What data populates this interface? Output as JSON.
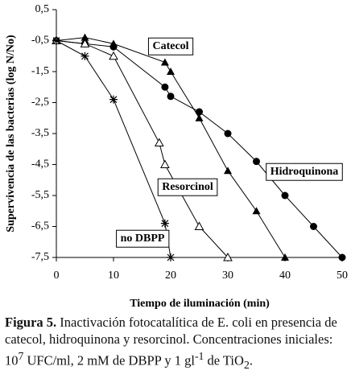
{
  "chart_data": {
    "type": "line",
    "xlabel": "Tiempo de iluminación (min)",
    "ylabel": "Supervivencia de las bacterias (log N/No)",
    "xlim": [
      0,
      50
    ],
    "xticks": [
      0,
      10,
      20,
      30,
      40,
      50
    ],
    "ylim": [
      -7.5,
      0.5
    ],
    "yticks": [
      {
        "value": 0.5,
        "label": "0,5"
      },
      {
        "value": -0.5,
        "label": "-0,5"
      },
      {
        "value": -1.5,
        "label": "-1,5"
      },
      {
        "value": -2.5,
        "label": "-2,5"
      },
      {
        "value": -3.5,
        "label": "-3,5"
      },
      {
        "value": -4.5,
        "label": "-4,5"
      },
      {
        "value": -5.5,
        "label": "-5,5"
      },
      {
        "value": -6.5,
        "label": "-6,5"
      },
      {
        "value": -7.5,
        "label": "-7,5"
      }
    ],
    "color": "#000000",
    "series": [
      {
        "name": "Catecol",
        "marker": "triangle-filled",
        "x": [
          0,
          5,
          10,
          19,
          20,
          25,
          30,
          35,
          40
        ],
        "values": [
          -0.5,
          -0.4,
          -0.6,
          -1.2,
          -1.5,
          -3.0,
          -4.7,
          -6.0,
          -7.5
        ]
      },
      {
        "name": "Hidroquinona",
        "marker": "circle-filled",
        "x": [
          0,
          5,
          10,
          19,
          20,
          25,
          30,
          35,
          40,
          45,
          50
        ],
        "values": [
          -0.5,
          -0.6,
          -0.7,
          -2.0,
          -2.3,
          -2.8,
          -3.5,
          -4.4,
          -5.5,
          -6.5,
          -7.5
        ]
      },
      {
        "name": "Resorcinol",
        "marker": "triangle-open",
        "x": [
          0,
          5,
          10,
          18,
          19,
          25,
          30
        ],
        "values": [
          -0.5,
          -0.6,
          -1.0,
          -3.8,
          -4.5,
          -6.5,
          -7.5
        ]
      },
      {
        "name": "no DBPP",
        "marker": "asterisk",
        "x": [
          0,
          5,
          10,
          19,
          20
        ],
        "values": [
          -0.5,
          -1.0,
          -2.4,
          -6.4,
          -7.5
        ]
      }
    ]
  },
  "caption": {
    "label": "Figura 5.",
    "parts": [
      "Inactivación fotocatalítica de E. coli en presencia de catecol, hidroquinona y resorcinol. Concentraciones iniciales: 10",
      "7",
      " UFC/ml, 2 mM de DBPP y 1 gl",
      "-1",
      " de TiO",
      "2",
      "."
    ]
  }
}
